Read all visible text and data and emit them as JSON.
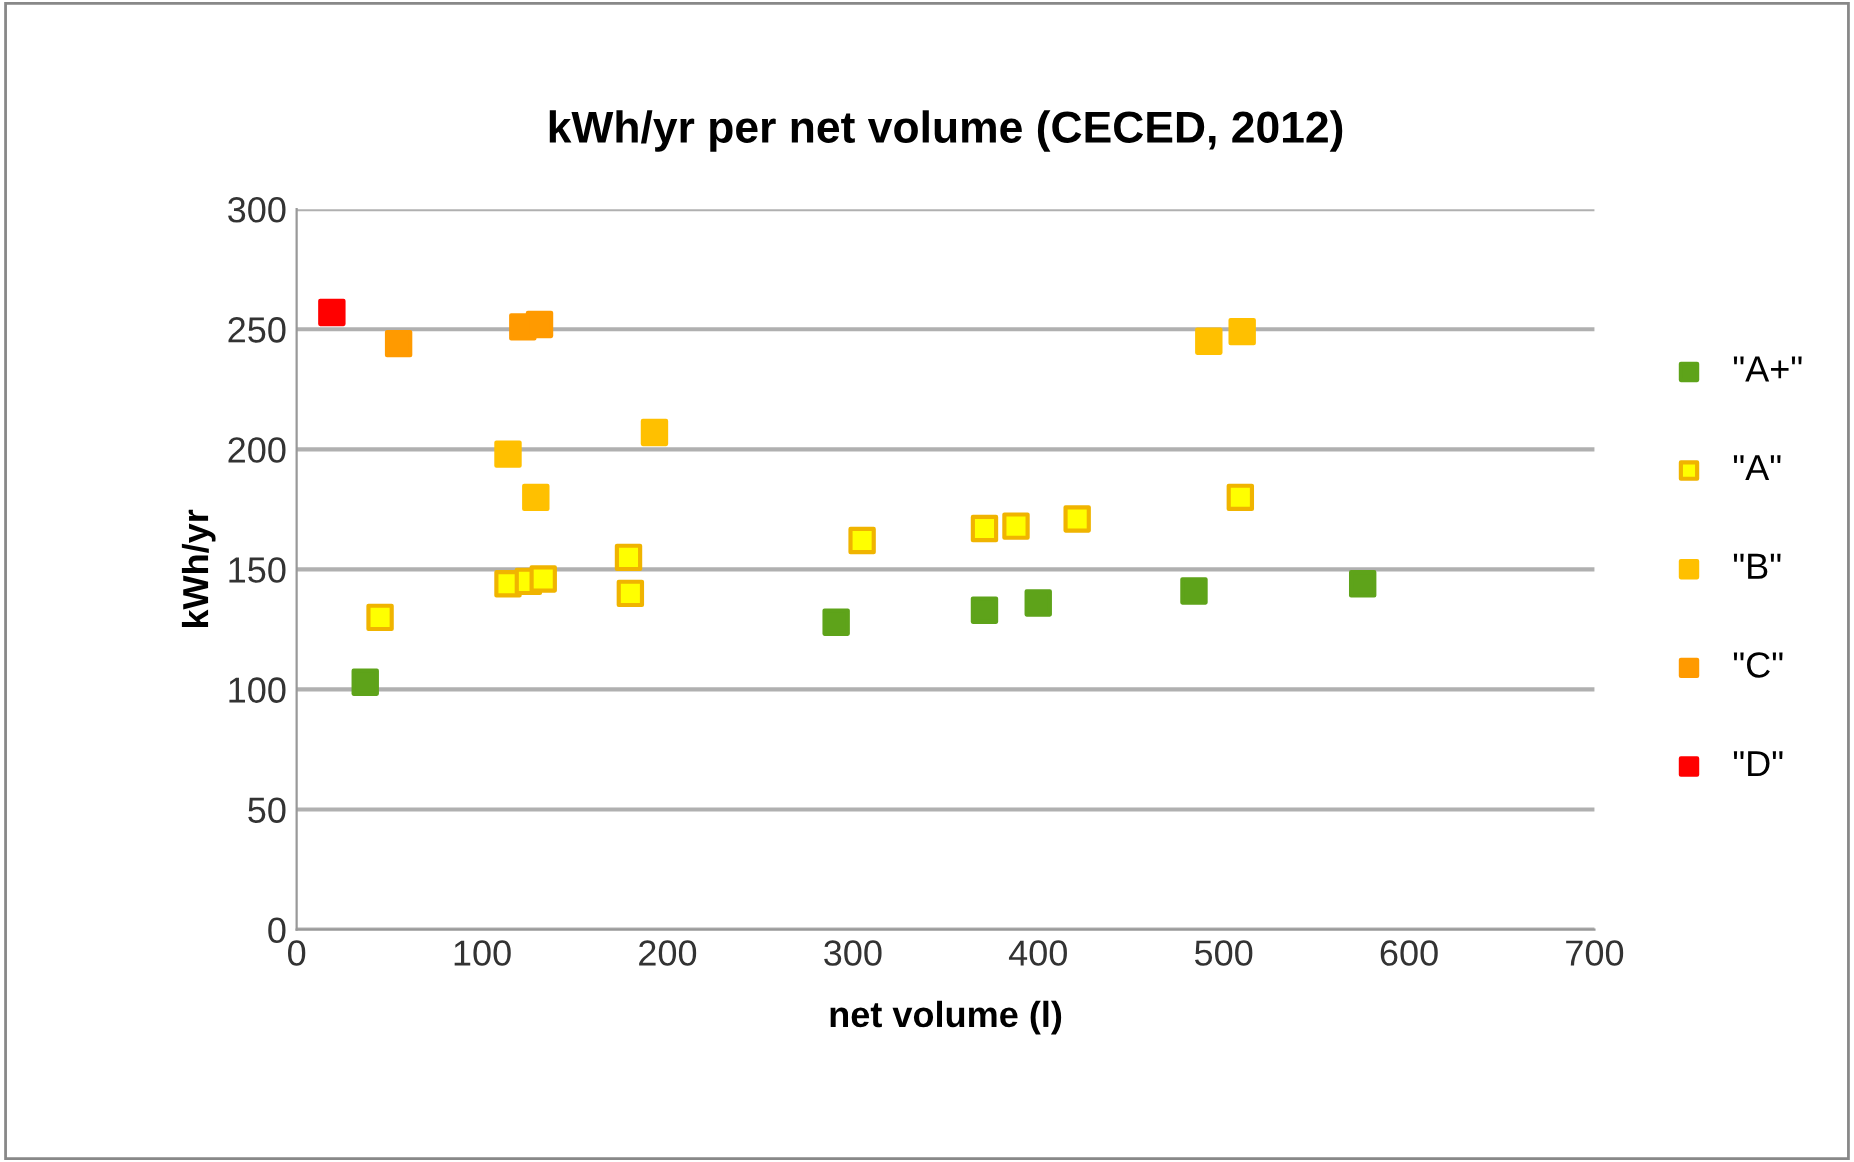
{
  "chart_data": {
    "type": "scatter",
    "title": "kWh/yr per net volume (CECED, 2012)",
    "xlabel": "net volume (l)",
    "ylabel": "kWh/yr",
    "xlim": [
      0,
      700
    ],
    "xticks": [
      0,
      100,
      200,
      300,
      400,
      500,
      600,
      700
    ],
    "ylim": [
      0,
      300
    ],
    "yticks": [
      0,
      50,
      100,
      150,
      200,
      250,
      300
    ],
    "grid": "y",
    "legend": "right",
    "marker": "square",
    "series": [
      {
        "name": "\"A+\"",
        "color": "#5ea31a",
        "x": [
          37,
          291,
          371,
          400,
          484,
          575
        ],
        "values": [
          103,
          128,
          133,
          136,
          141,
          144
        ]
      },
      {
        "name": "\"A\"",
        "color": "#ffff00",
        "x": [
          45,
          114,
          125,
          133,
          179,
          180,
          305,
          371,
          388,
          421,
          509
        ],
        "values": [
          130,
          144,
          145,
          146,
          155,
          140,
          162,
          167,
          168,
          171,
          180
        ]
      },
      {
        "name": "\"B\"",
        "color": "#ffc000",
        "x": [
          114,
          129,
          193,
          492,
          510
        ],
        "values": [
          198,
          180,
          207,
          245,
          249
        ]
      },
      {
        "name": "\"C\"",
        "color": "#ff9a00",
        "x": [
          55,
          122,
          131
        ],
        "values": [
          244,
          251,
          252
        ]
      },
      {
        "name": "\"D\"",
        "color": "#ff0000",
        "x": [
          19
        ],
        "values": [
          257
        ]
      }
    ]
  }
}
